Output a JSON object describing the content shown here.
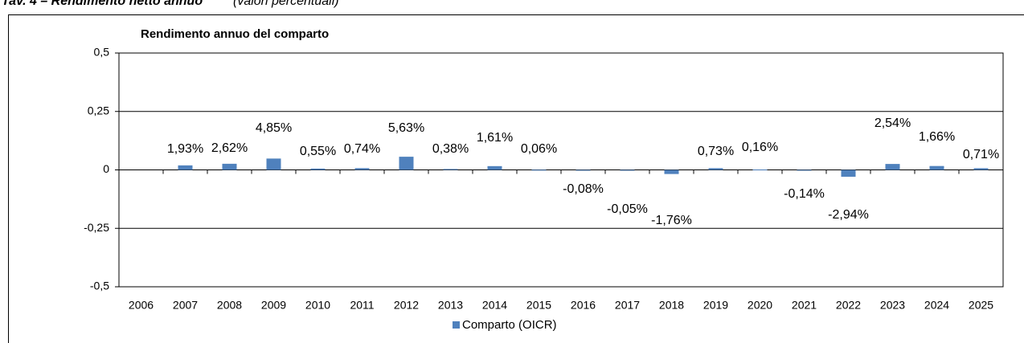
{
  "caption": {
    "title": "Tav. 4 – Rendimento netto annuo",
    "subtitle": "(valori percentuali)"
  },
  "chart_data": {
    "type": "bar",
    "title": "Rendimento annuo del comparto",
    "categories": [
      "2006",
      "2007",
      "2008",
      "2009",
      "2010",
      "2011",
      "2012",
      "2013",
      "2014",
      "2015",
      "2016",
      "2017",
      "2018",
      "2019",
      "2020",
      "2021",
      "2022",
      "2023",
      "2024",
      "2025"
    ],
    "series": [
      {
        "name": "Comparto (OICR)",
        "color": "#4f81bd",
        "values": [
          null,
          0.0193,
          0.0262,
          0.0485,
          0.0055,
          0.0074,
          0.0563,
          0.0038,
          0.0161,
          0.0006,
          -0.0008,
          -0.0005,
          -0.0176,
          0.0073,
          0.0016,
          -0.0014,
          -0.0294,
          0.0254,
          0.0166,
          0.0071
        ],
        "value_labels": [
          null,
          "1,93%",
          "2,62%",
          "4,85%",
          "0,55%",
          "0,74%",
          "5,63%",
          "0,38%",
          "1,61%",
          "0,06%",
          "-0,08%",
          "-0,05%",
          "-1,76%",
          "0,73%",
          "0,16%",
          "-0,14%",
          "-2,94%",
          "2,54%",
          "1,66%",
          "0,71%"
        ]
      }
    ],
    "ylim": [
      -0.5,
      0.5
    ],
    "yticks": [
      {
        "value": -0.5,
        "label": "-0,5"
      },
      {
        "value": -0.25,
        "label": "-0,25"
      },
      0,
      {
        "value": 0.25,
        "label": "0,25"
      },
      {
        "value": 0.5,
        "label": "0,5"
      }
    ],
    "grid": true,
    "legend": "bottom"
  }
}
